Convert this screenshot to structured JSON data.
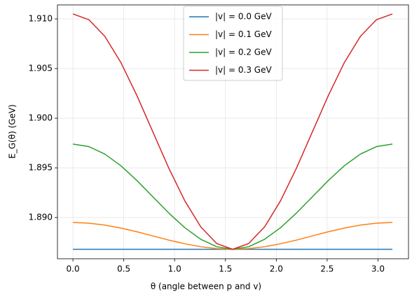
{
  "chart_data": {
    "type": "line",
    "xlabel": "θ (angle between p and v)",
    "ylabel": "E_G(θ) (GeV)",
    "x": [
      0,
      0.157,
      0.314,
      0.471,
      0.628,
      0.785,
      0.942,
      1.1,
      1.257,
      1.414,
      1.571,
      1.728,
      1.885,
      2.042,
      2.199,
      2.356,
      2.513,
      2.67,
      2.827,
      2.985,
      3.142
    ],
    "series": [
      {
        "name": "|v| = 0.0 GeV",
        "color": "#1f77b4",
        "values": [
          1.8868,
          1.8868,
          1.8868,
          1.8868,
          1.8868,
          1.8868,
          1.8868,
          1.8868,
          1.8868,
          1.8868,
          1.8868,
          1.8868,
          1.8868,
          1.8868,
          1.8868,
          1.8868,
          1.8868,
          1.8868,
          1.8868,
          1.8868,
          1.8868
        ]
      },
      {
        "name": "|v| = 0.1 GeV",
        "color": "#ff7f0e",
        "values": [
          1.8895,
          1.88943,
          1.88924,
          1.88894,
          1.88857,
          1.88815,
          1.88773,
          1.88736,
          1.88706,
          1.88687,
          1.8868,
          1.88687,
          1.88706,
          1.88736,
          1.88773,
          1.88815,
          1.88857,
          1.88894,
          1.88924,
          1.88943,
          1.8895
        ]
      },
      {
        "name": "|v| = 0.2 GeV",
        "color": "#2ca02c",
        "values": [
          1.8974,
          1.89714,
          1.89639,
          1.89522,
          1.89374,
          1.8921,
          1.89046,
          1.88898,
          1.88781,
          1.88706,
          1.8868,
          1.88706,
          1.88781,
          1.88898,
          1.89046,
          1.8921,
          1.89374,
          1.89522,
          1.89639,
          1.89714,
          1.8974
        ]
      },
      {
        "name": "|v| = 0.3 GeV",
        "color": "#d62728",
        "values": [
          1.9105,
          1.90992,
          1.90824,
          1.90562,
          1.90231,
          1.89865,
          1.89499,
          1.89169,
          1.88906,
          1.88738,
          1.8868,
          1.88738,
          1.88906,
          1.89169,
          1.89499,
          1.89865,
          1.90231,
          1.90562,
          1.90824,
          1.90992,
          1.9105
        ]
      }
    ],
    "xlim": [
      -0.152,
      3.3
    ],
    "ylim": [
      1.88585,
      1.91141
    ],
    "xticks": [
      {
        "value": 0,
        "label": "0.0"
      },
      0.5,
      {
        "value": 1,
        "label": "1.0"
      },
      1.5,
      {
        "value": 2,
        "label": "2.0"
      },
      2.5,
      {
        "value": 3,
        "label": "3.0"
      }
    ],
    "yticks": [
      {
        "value": 1.89,
        "label": "1.890"
      },
      1.895,
      {
        "value": 1.9,
        "label": "1.900"
      },
      1.905,
      {
        "value": 1.91,
        "label": "1.910"
      }
    ],
    "grid": true,
    "legend": "upper center"
  }
}
